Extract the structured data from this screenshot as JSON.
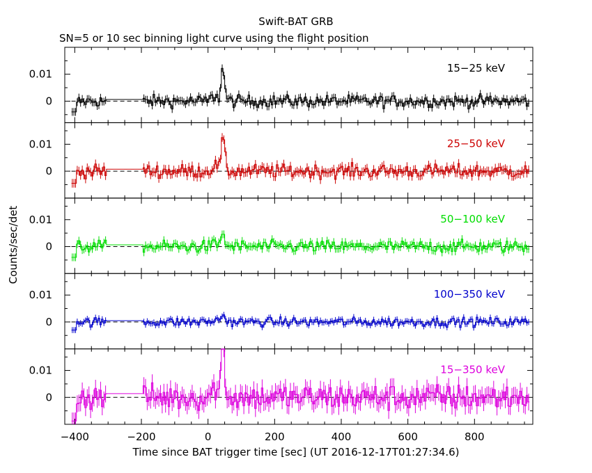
{
  "chart_data": {
    "type": "line",
    "title": "Swift-BAT GRB",
    "subtitle": "SN=5 or 10 sec binning light curve using the flight position",
    "xlabel": "Time since BAT trigger time [sec] (UT 2016-12-17T01:27:34.6)",
    "ylabel": "Counts/sec/det",
    "xlim": [
      -430,
      975
    ],
    "x_ticks": [
      -400,
      -200,
      0,
      200,
      400,
      600,
      800
    ],
    "y_ticks": [
      0,
      0.01
    ],
    "zero_line": "dashed",
    "panels": [
      {
        "name": "15-25 keV",
        "color": "#000000",
        "ylim": [
          -0.008,
          0.02
        ],
        "noise": 0.0016,
        "peak": 0.012,
        "label": "15−25 keV"
      },
      {
        "name": "25-50 keV",
        "color": "#cc0000",
        "ylim": [
          -0.01,
          0.018
        ],
        "noise": 0.0018,
        "peak": 0.012,
        "label": "25−50 keV"
      },
      {
        "name": "50-100 keV",
        "color": "#00dd00",
        "ylim": [
          -0.01,
          0.018
        ],
        "noise": 0.0016,
        "peak": 0.005,
        "label": "50−100 keV"
      },
      {
        "name": "100-350 keV",
        "color": "#0000cc",
        "ylim": [
          -0.01,
          0.018
        ],
        "noise": 0.0012,
        "peak": 0.003,
        "label": "100−350 keV"
      },
      {
        "name": "15-350 keV",
        "color": "#dd00dd",
        "ylim": [
          -0.01,
          0.018
        ],
        "noise": 0.0035,
        "peak": 0.02,
        "label": "15−350 keV"
      }
    ]
  }
}
